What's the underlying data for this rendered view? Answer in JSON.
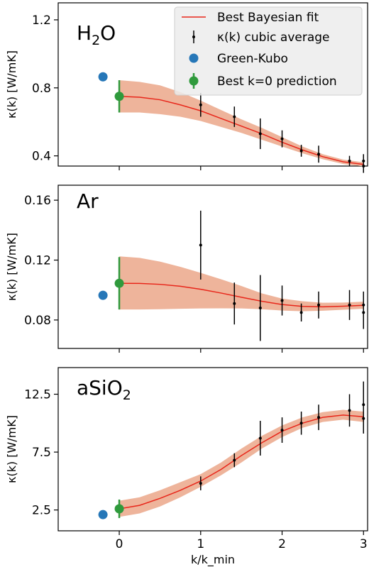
{
  "chart_data": [
    {
      "type": "line",
      "panel_label": "H2O",
      "panel_label_main": "H",
      "panel_label_sub": "2",
      "panel_label_tail": "O",
      "ylabel": "κ(k) [W/mK]",
      "xlim": [
        -0.75,
        3.05
      ],
      "ylim": [
        0.34,
        1.3
      ],
      "yticks": [
        "0.4",
        "0.8",
        "1.2"
      ],
      "ytick_values": [
        0.4,
        0.8,
        1.2
      ],
      "fit": {
        "name": "Best Bayesian fit",
        "x": [
          0,
          0.25,
          0.5,
          0.75,
          1.0,
          1.25,
          1.5,
          1.75,
          2.0,
          2.25,
          2.5,
          2.75,
          3.0
        ],
        "y": [
          0.75,
          0.745,
          0.73,
          0.7,
          0.665,
          0.62,
          0.575,
          0.53,
          0.48,
          0.435,
          0.395,
          0.365,
          0.35
        ],
        "lower": [
          0.655,
          0.655,
          0.645,
          0.63,
          0.605,
          0.57,
          0.535,
          0.495,
          0.455,
          0.415,
          0.38,
          0.352,
          0.338
        ],
        "upper": [
          0.845,
          0.835,
          0.815,
          0.775,
          0.725,
          0.67,
          0.615,
          0.565,
          0.51,
          0.455,
          0.41,
          0.378,
          0.362
        ]
      },
      "points": {
        "name": "κ(k) cubic average",
        "x": [
          1.0,
          1.414,
          1.732,
          2.0,
          2.236,
          2.449,
          2.828,
          3.0,
          3.0
        ],
        "y": [
          0.7,
          0.63,
          0.53,
          0.5,
          0.43,
          0.41,
          0.37,
          0.37,
          0.34
        ],
        "err": [
          0.07,
          0.06,
          0.09,
          0.05,
          0.035,
          0.05,
          0.03,
          0.04,
          0.04
        ]
      },
      "green_kubo": {
        "name": "Green-Kubo",
        "x": -0.2,
        "y": 0.865
      },
      "k0_prediction": {
        "name": "Best k=0 prediction",
        "x": 0,
        "y": 0.75,
        "err": 0.095
      },
      "legend": {
        "placement": "top-right",
        "entries": [
          "Best Bayesian fit",
          "κ(k) cubic average",
          "Green-Kubo",
          "Best k=0 prediction"
        ]
      }
    },
    {
      "type": "line",
      "panel_label": "Ar",
      "ylabel": "κ(k) [W/mK]",
      "xlim": [
        -0.75,
        3.05
      ],
      "ylim": [
        0.061,
        0.17
      ],
      "yticks": [
        "0.08",
        "0.12",
        "0.16"
      ],
      "ytick_values": [
        0.08,
        0.12,
        0.16
      ],
      "fit": {
        "x": [
          0,
          0.25,
          0.5,
          0.75,
          1.0,
          1.25,
          1.5,
          1.75,
          2.0,
          2.25,
          2.5,
          2.75,
          3.0
        ],
        "y": [
          0.1045,
          0.1044,
          0.1038,
          0.1025,
          0.1005,
          0.098,
          0.0952,
          0.0925,
          0.0903,
          0.0891,
          0.0888,
          0.0892,
          0.0898
        ],
        "lower": [
          0.087,
          0.087,
          0.0872,
          0.0875,
          0.0877,
          0.0878,
          0.0877,
          0.0872,
          0.0863,
          0.0858,
          0.0862,
          0.0868,
          0.0875
        ],
        "upper": [
          0.1225,
          0.1215,
          0.119,
          0.1155,
          0.1115,
          0.1072,
          0.1027,
          0.0978,
          0.0943,
          0.0925,
          0.0915,
          0.0916,
          0.0922
        ]
      },
      "points": {
        "x": [
          1.0,
          1.414,
          1.732,
          2.0,
          2.236,
          2.449,
          2.828,
          3.0,
          3.0
        ],
        "y": [
          0.13,
          0.091,
          0.088,
          0.093,
          0.085,
          0.09,
          0.09,
          0.09,
          0.085
        ],
        "err": [
          0.023,
          0.014,
          0.022,
          0.01,
          0.006,
          0.009,
          0.01,
          0.009,
          0.011
        ]
      },
      "green_kubo": {
        "x": -0.2,
        "y": 0.0965
      },
      "k0_prediction": {
        "x": 0,
        "y": 0.1045,
        "err": 0.0175
      }
    },
    {
      "type": "line",
      "panel_label": "aSiO2",
      "panel_label_main": "aSiO",
      "panel_label_sub": "2",
      "panel_label_tail": "",
      "ylabel": "κ(k) [W/mK]",
      "xlabel": "k/k_min",
      "xlim": [
        -0.75,
        3.05
      ],
      "ylim": [
        0.7,
        14.8
      ],
      "yticks": [
        "2.5",
        "7.5",
        "12.5"
      ],
      "ytick_values": [
        2.5,
        7.5,
        12.5
      ],
      "xticks": [
        "0",
        "1",
        "2",
        "3"
      ],
      "xtick_values": [
        0,
        1,
        2,
        3
      ],
      "fit": {
        "x": [
          0,
          0.25,
          0.5,
          0.75,
          1.0,
          1.25,
          1.5,
          1.75,
          2.0,
          2.25,
          2.5,
          2.75,
          3.0
        ],
        "y": [
          2.6,
          2.9,
          3.5,
          4.2,
          5.0,
          6.0,
          7.2,
          8.3,
          9.3,
          10.0,
          10.5,
          10.7,
          10.55
        ],
        "lower": [
          1.9,
          2.2,
          2.8,
          3.6,
          4.5,
          5.5,
          6.6,
          7.8,
          8.8,
          9.6,
          10.1,
          10.3,
          10.1
        ],
        "upper": [
          3.3,
          3.6,
          4.2,
          4.9,
          5.6,
          6.6,
          7.8,
          8.9,
          9.8,
          10.5,
          10.95,
          11.15,
          11.0
        ]
      },
      "points": {
        "x": [
          1.0,
          1.414,
          1.732,
          2.0,
          2.236,
          2.449,
          2.828,
          3.0,
          3.0
        ],
        "y": [
          4.8,
          6.8,
          8.7,
          9.4,
          10.0,
          10.5,
          11.1,
          11.6,
          10.4
        ],
        "err": [
          0.6,
          0.6,
          1.5,
          1.1,
          1.0,
          1.1,
          1.4,
          2.0,
          1.3
        ]
      },
      "green_kubo": {
        "x": -0.2,
        "y": 2.1
      },
      "k0_prediction": {
        "x": 0,
        "y": 2.6,
        "err": 0.8
      }
    }
  ],
  "colors": {
    "fit_line": "#e8261a",
    "band": "#edb096",
    "points": "#000000",
    "green_kubo": "#2677b8",
    "k0_prediction": "#2f9a3c",
    "legend_bg": "#ececec"
  }
}
